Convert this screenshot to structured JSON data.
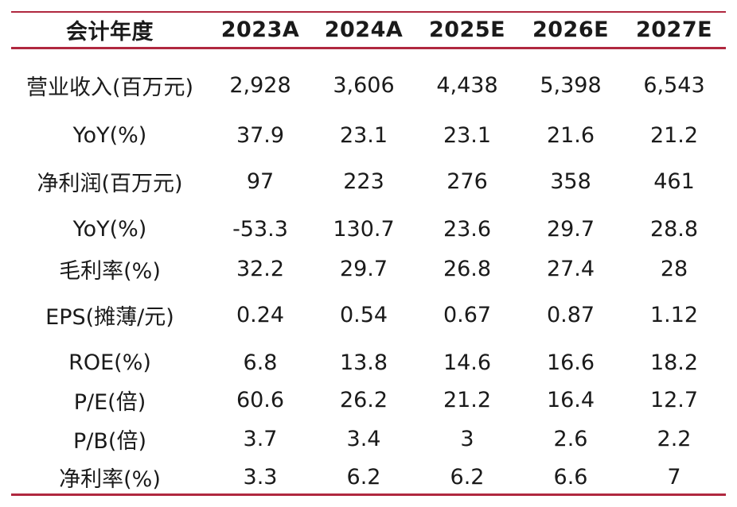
{
  "table": {
    "headers": [
      "会计年度",
      "2023A",
      "2024A",
      "2025E",
      "2026E",
      "2027E"
    ],
    "rows": [
      {
        "label": "营业收入(百万元)",
        "values": [
          "2,928",
          "3,606",
          "4,438",
          "5,398",
          "6,543"
        ]
      },
      {
        "label": "YoY(%)",
        "values": [
          "37.9",
          "23.1",
          "23.1",
          "21.6",
          "21.2"
        ]
      },
      {
        "label": "净利润(百万元)",
        "values": [
          "97",
          "223",
          "276",
          "358",
          "461"
        ]
      },
      {
        "label": "YoY(%)",
        "values": [
          "-53.3",
          "130.7",
          "23.6",
          "29.7",
          "28.8"
        ]
      },
      {
        "label": "毛利率(%)",
        "values": [
          "32.2",
          "29.7",
          "26.8",
          "27.4",
          "28"
        ]
      },
      {
        "label": "EPS(摊薄/元)",
        "values": [
          "0.24",
          "0.54",
          "0.67",
          "0.87",
          "1.12"
        ]
      },
      {
        "label": "ROE(%)",
        "values": [
          "6.8",
          "13.8",
          "14.6",
          "16.6",
          "18.2"
        ]
      },
      {
        "label": "P/E(倍)",
        "values": [
          "60.6",
          "26.2",
          "21.2",
          "16.4",
          "12.7"
        ]
      },
      {
        "label": "P/B(倍)",
        "values": [
          "3.7",
          "3.4",
          "3",
          "2.6",
          "2.2"
        ]
      },
      {
        "label": "净利率(%)",
        "values": [
          "3.3",
          "6.2",
          "6.2",
          "6.6",
          "7"
        ]
      }
    ]
  },
  "colors": {
    "rule": "#b0283f",
    "text": "#1a1a1a"
  }
}
